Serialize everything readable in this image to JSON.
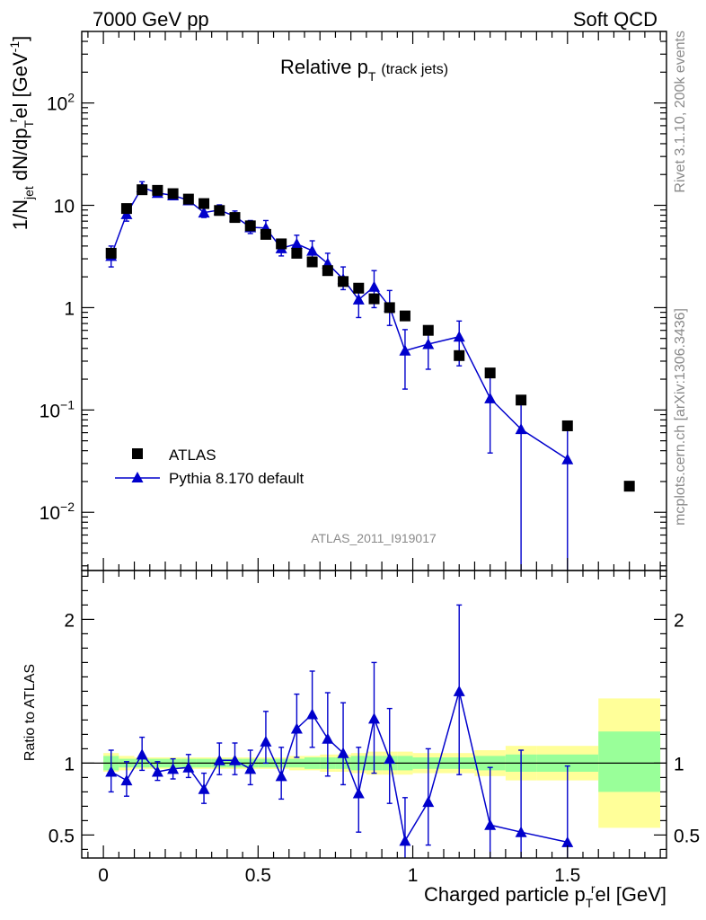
{
  "header": {
    "left": "7000 GeV pp",
    "right": "Soft QCD"
  },
  "plot_title": {
    "main": "Relative p",
    "sub": "T",
    "suffix": "(track jets)"
  },
  "ylabel_main": {
    "p1": "1/N",
    "s1": "jet",
    "p2": " dN/dp",
    "s2": "T",
    "sup2": "r",
    "p3": "el [GeV",
    "sup3": "-1",
    "p4": "]"
  },
  "xlabel": {
    "p1": "Charged particle p",
    "sub": "T",
    "sup": "r",
    "p2": "el [GeV]"
  },
  "ratio_ylabel": "Ratio to ATLAS",
  "side_text": {
    "rivet": "Rivet 3.1.10,  200k events",
    "mcplots": "mcplots.cern.ch [arXiv:1306.3436]"
  },
  "watermark": "ATLAS_2011_I919017",
  "legend": {
    "data_label": "ATLAS",
    "mc_label": "Pythia 8.170 default"
  },
  "colors": {
    "data": "#000000",
    "mc": "#0000cc",
    "band_outer": "#ffff99",
    "band_inner": "#99ff99"
  },
  "chart_data": [
    {
      "type": "scatter",
      "panel": "main",
      "title": "Relative pT (track jets)",
      "xlabel": "Charged particle pT rel [GeV]",
      "ylabel": "1/Njet dN/dpT rel [GeV-1]",
      "ylog": true,
      "xlim": [
        -0.07,
        1.82
      ],
      "ylim": [
        0.0027,
        500
      ],
      "ytick_labels": [
        "10^-2",
        "10^-1",
        "1",
        "10",
        "10^2"
      ],
      "legend_position": "bottom-left",
      "series": [
        {
          "name": "ATLAS",
          "marker": "square",
          "x": [
            0.025,
            0.075,
            0.125,
            0.175,
            0.225,
            0.275,
            0.325,
            0.375,
            0.425,
            0.475,
            0.525,
            0.575,
            0.625,
            0.675,
            0.725,
            0.775,
            0.825,
            0.875,
            0.925,
            0.975,
            1.05,
            1.15,
            1.25,
            1.35,
            1.5,
            1.7
          ],
          "y": [
            3.4,
            9.3,
            14.2,
            14.0,
            13.0,
            11.5,
            10.4,
            8.9,
            7.6,
            6.3,
            5.2,
            4.2,
            3.4,
            2.8,
            2.3,
            1.8,
            1.55,
            1.22,
            1.0,
            0.83,
            0.6,
            0.34,
            0.23,
            0.125,
            0.07,
            0.018
          ]
        },
        {
          "name": "Pythia 8.170 default",
          "marker": "triangle",
          "x": [
            0.025,
            0.075,
            0.125,
            0.175,
            0.225,
            0.275,
            0.325,
            0.375,
            0.425,
            0.475,
            0.525,
            0.575,
            0.625,
            0.675,
            0.725,
            0.775,
            0.825,
            0.875,
            0.925,
            0.975,
            1.05,
            1.15,
            1.25,
            1.35,
            1.5
          ],
          "y": [
            3.2,
            8.2,
            15.0,
            13.2,
            12.5,
            11.2,
            8.5,
            9.0,
            7.8,
            6.1,
            6.0,
            3.8,
            4.2,
            3.6,
            2.7,
            1.9,
            1.2,
            1.6,
            1.02,
            0.38,
            0.44,
            0.52,
            0.13,
            0.065,
            0.033
          ],
          "err_low": [
            0.7,
            1.2,
            1.5,
            0.7,
            0.7,
            0.8,
            0.9,
            0.9,
            0.8,
            0.8,
            0.8,
            0.6,
            0.7,
            0.7,
            0.6,
            0.4,
            0.4,
            0.6,
            0.35,
            0.22,
            0.19,
            0.25,
            0.092,
            0.0647,
            0.0328
          ],
          "err_high": [
            0.8,
            1.4,
            2.0,
            0.8,
            0.8,
            1.0,
            1.0,
            1.1,
            1.0,
            1.0,
            1.1,
            0.8,
            0.9,
            0.9,
            0.7,
            0.6,
            0.5,
            0.7,
            0.45,
            0.23,
            0.21,
            0.22,
            0.11,
            0.065,
            0.04
          ]
        }
      ]
    },
    {
      "type": "line",
      "panel": "ratio",
      "ylabel": "Ratio to ATLAS",
      "xlabel": "Charged particle pT rel [GeV]",
      "xlim": [
        -0.07,
        1.82
      ],
      "ylim": [
        0.34,
        2.34
      ],
      "ytick_labels": [
        "0.5",
        "1",
        "2"
      ],
      "xtick_labels": [
        "0",
        "0.5",
        "1",
        "1.5"
      ],
      "reference_line": 1.0,
      "uncertainty_band": {
        "edges": [
          0.0,
          0.05,
          0.1,
          0.15,
          0.2,
          0.25,
          0.3,
          0.35,
          0.4,
          0.45,
          0.5,
          0.55,
          0.6,
          0.65,
          0.7,
          0.75,
          0.8,
          0.85,
          0.9,
          0.95,
          1.0,
          1.1,
          1.2,
          1.3,
          1.4,
          1.6,
          1.8
        ],
        "inner_low": [
          0.95,
          0.97,
          0.97,
          0.97,
          0.97,
          0.97,
          0.97,
          0.97,
          0.97,
          0.97,
          0.97,
          0.97,
          0.97,
          0.96,
          0.96,
          0.96,
          0.95,
          0.95,
          0.95,
          0.95,
          0.96,
          0.96,
          0.95,
          0.94,
          0.94,
          0.8
        ],
        "inner_high": [
          1.05,
          1.03,
          1.03,
          1.03,
          1.03,
          1.03,
          1.03,
          1.03,
          1.03,
          1.03,
          1.03,
          1.03,
          1.03,
          1.04,
          1.04,
          1.04,
          1.05,
          1.05,
          1.05,
          1.05,
          1.04,
          1.04,
          1.05,
          1.06,
          1.06,
          1.22
        ],
        "outer_low": [
          0.94,
          0.95,
          0.96,
          0.96,
          0.96,
          0.96,
          0.96,
          0.96,
          0.96,
          0.96,
          0.96,
          0.96,
          0.95,
          0.95,
          0.94,
          0.94,
          0.93,
          0.92,
          0.92,
          0.92,
          0.93,
          0.93,
          0.91,
          0.88,
          0.88,
          0.55
        ],
        "outer_high": [
          1.07,
          1.05,
          1.04,
          1.04,
          1.04,
          1.04,
          1.04,
          1.04,
          1.04,
          1.04,
          1.04,
          1.04,
          1.05,
          1.05,
          1.06,
          1.06,
          1.07,
          1.08,
          1.08,
          1.08,
          1.07,
          1.07,
          1.09,
          1.12,
          1.12,
          1.45
        ]
      },
      "series": [
        {
          "name": "Pythia 8.170 default",
          "marker": "triangle",
          "x": [
            0.025,
            0.075,
            0.125,
            0.175,
            0.225,
            0.275,
            0.325,
            0.375,
            0.425,
            0.475,
            0.525,
            0.575,
            0.625,
            0.675,
            0.725,
            0.775,
            0.825,
            0.875,
            0.925,
            0.975,
            1.05,
            1.15,
            1.25,
            1.35,
            1.5
          ],
          "y": [
            0.94,
            0.88,
            1.06,
            0.94,
            0.96,
            0.97,
            0.82,
            1.02,
            1.02,
            0.96,
            1.15,
            0.91,
            1.24,
            1.34,
            1.17,
            1.07,
            0.79,
            1.31,
            1.03,
            0.46,
            0.73,
            1.5,
            0.57,
            0.52,
            0.45
          ],
          "err_low": [
            0.14,
            0.11,
            0.11,
            0.06,
            0.07,
            0.07,
            0.1,
            0.1,
            0.1,
            0.11,
            0.15,
            0.16,
            0.2,
            0.23,
            0.26,
            0.22,
            0.27,
            0.38,
            0.31,
            0.19,
            0.3,
            0.58,
            0.25,
            0.2,
            0.14
          ],
          "err_high": [
            0.15,
            0.13,
            0.12,
            0.07,
            0.07,
            0.09,
            0.11,
            0.12,
            0.12,
            0.13,
            0.21,
            0.2,
            0.24,
            0.3,
            0.32,
            0.35,
            0.32,
            0.39,
            0.35,
            0.3,
            0.37,
            0.6,
            0.4,
            0.57,
            0.53
          ]
        }
      ]
    }
  ]
}
